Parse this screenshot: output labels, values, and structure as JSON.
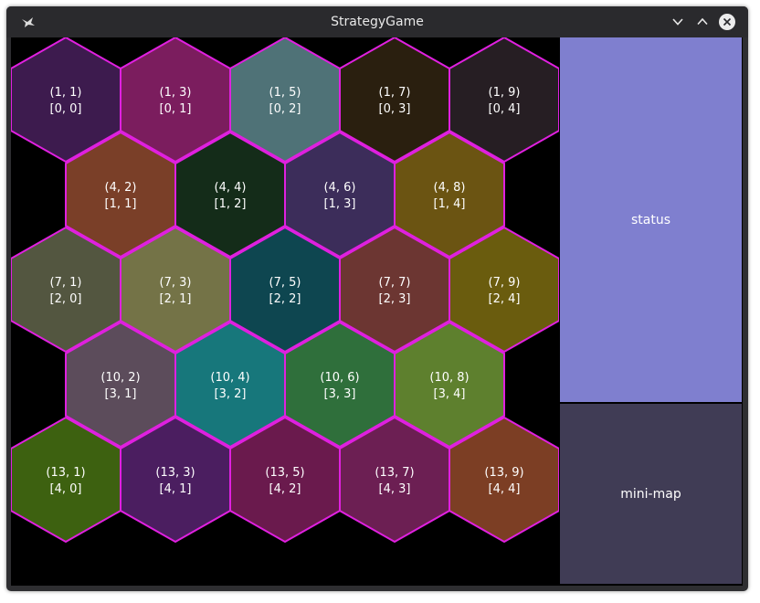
{
  "window": {
    "title": "StrategyGame",
    "controls": [
      "minimize",
      "maximize",
      "close"
    ],
    "app_icon": "app-icon"
  },
  "panels": {
    "status_label": "status",
    "minimap_label": "mini-map",
    "status_color": "#7f7fcf",
    "minimap_color": "#403c55"
  },
  "hex_border_color": "#e020e0",
  "hexes": [
    {
      "coord": "(1, 1)",
      "index": "[0, 0]",
      "color": "#3d1b4e"
    },
    {
      "coord": "(1, 3)",
      "index": "[0, 1]",
      "color": "#7b1d5e"
    },
    {
      "coord": "(1, 5)",
      "index": "[0, 2]",
      "color": "#4f7277"
    },
    {
      "coord": "(1, 7)",
      "index": "[0, 3]",
      "color": "#2a1f0f"
    },
    {
      "coord": "(1, 9)",
      "index": "[0, 4]",
      "color": "#261e23"
    },
    {
      "coord": "(4, 2)",
      "index": "[1, 1]",
      "color": "#7a3f28"
    },
    {
      "coord": "(4, 4)",
      "index": "[1, 2]",
      "color": "#142c19"
    },
    {
      "coord": "(4, 6)",
      "index": "[1, 3]",
      "color": "#3c2d5a"
    },
    {
      "coord": "(4, 8)",
      "index": "[1, 4]",
      "color": "#6b5412"
    },
    {
      "coord": "(7, 1)",
      "index": "[2, 0]",
      "color": "#535640"
    },
    {
      "coord": "(7, 3)",
      "index": "[2, 1]",
      "color": "#747347"
    },
    {
      "coord": "(7, 5)",
      "index": "[2, 2]",
      "color": "#0e4650"
    },
    {
      "coord": "(7, 7)",
      "index": "[2, 3]",
      "color": "#6c3632"
    },
    {
      "coord": "(7, 9)",
      "index": "[2, 4]",
      "color": "#6a5c0e"
    },
    {
      "coord": "(10, 2)",
      "index": "[3, 1]",
      "color": "#5c4c5b"
    },
    {
      "coord": "(10, 4)",
      "index": "[3, 2]",
      "color": "#17777b"
    },
    {
      "coord": "(10, 6)",
      "index": "[3, 3]",
      "color": "#2f6f3b"
    },
    {
      "coord": "(10, 8)",
      "index": "[3, 4]",
      "color": "#5e802e"
    },
    {
      "coord": "(13, 1)",
      "index": "[4, 0]",
      "color": "#3d6110"
    },
    {
      "coord": "(13, 3)",
      "index": "[4, 1]",
      "color": "#4b1e60"
    },
    {
      "coord": "(13, 5)",
      "index": "[4, 2]",
      "color": "#6a1a4d"
    },
    {
      "coord": "(13, 7)",
      "index": "[4, 3]",
      "color": "#6c1f53"
    },
    {
      "coord": "(13, 9)",
      "index": "[4, 4]",
      "color": "#7c3e24"
    }
  ]
}
